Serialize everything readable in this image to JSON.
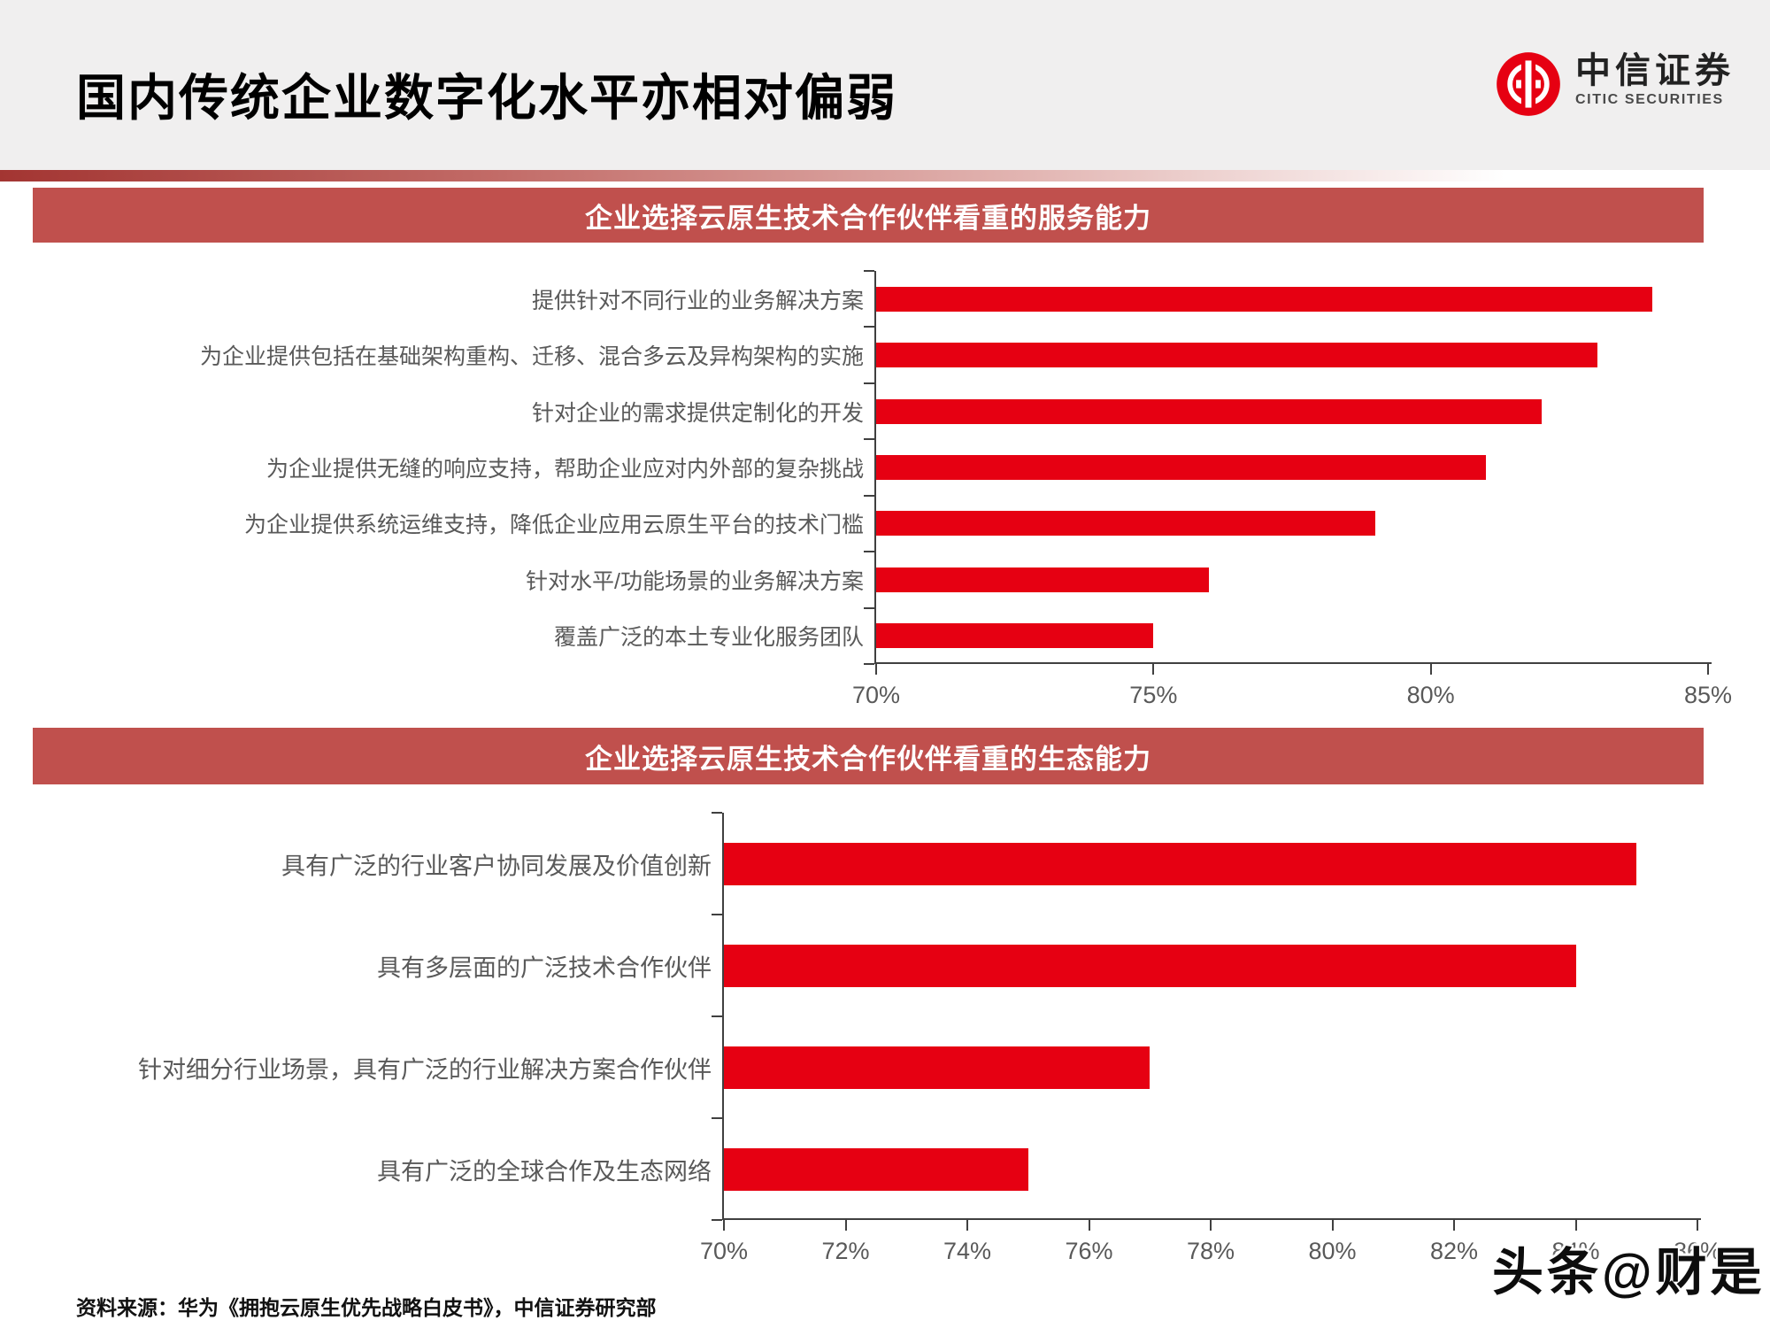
{
  "page": {
    "title": "国内传统企业数字化水平亦相对偏弱",
    "logo": {
      "cn": "中信证券",
      "en": "CITIC SECURITIES"
    },
    "source": "资料来源：华为《拥抱云原生优先战略白皮书》，中信证券研究部",
    "watermark": "头条@财是"
  },
  "colors": {
    "bar_red": "#e60012",
    "band_red": "#c0504d",
    "logo_red": "#e60012",
    "header_gray": "#f0efef",
    "axis_gray": "#404040",
    "label_gray": "#595959"
  },
  "chart_data": [
    {
      "type": "bar",
      "orientation": "horizontal",
      "title": "企业选择云原生技术合作伙伴看重的服务能力",
      "categories": [
        "提供针对不同行业的业务解决方案",
        "为企业提供包括在基础架构重构、迁移、混合多云及异构架构的实施",
        "针对企业的需求提供定制化的开发",
        "为企业提供无缝的响应支持，帮助企业应对内外部的复杂挑战",
        "为企业提供系统运维支持，降低企业应用云原生平台的技术门槛",
        "针对水平/功能场景的业务解决方案",
        "覆盖广泛的本土专业化服务团队"
      ],
      "values": [
        84,
        83,
        82,
        81,
        79,
        76,
        75
      ],
      "unit": "%",
      "xlim": [
        70,
        85
      ],
      "xticks": [
        70,
        75,
        80,
        85
      ],
      "xtick_labels": [
        "70%",
        "75%",
        "80%",
        "85%"
      ],
      "grid": false,
      "legend": null,
      "bar_color": "#e60012"
    },
    {
      "type": "bar",
      "orientation": "horizontal",
      "title": "企业选择云原生技术合作伙伴看重的生态能力",
      "categories": [
        "具有广泛的行业客户协同发展及价值创新",
        "具有多层面的广泛技术合作伙伴",
        "针对细分行业场景，具有广泛的行业解决方案合作伙伴",
        "具有广泛的全球合作及生态网络"
      ],
      "values": [
        85,
        84,
        77,
        75
      ],
      "unit": "%",
      "xlim": [
        70,
        86
      ],
      "xticks": [
        70,
        72,
        74,
        76,
        78,
        80,
        82,
        84,
        86
      ],
      "xtick_labels": [
        "70%",
        "72%",
        "74%",
        "76%",
        "78%",
        "80%",
        "82%",
        "84%",
        "86%"
      ],
      "grid": false,
      "legend": null,
      "bar_color": "#e60012"
    }
  ]
}
